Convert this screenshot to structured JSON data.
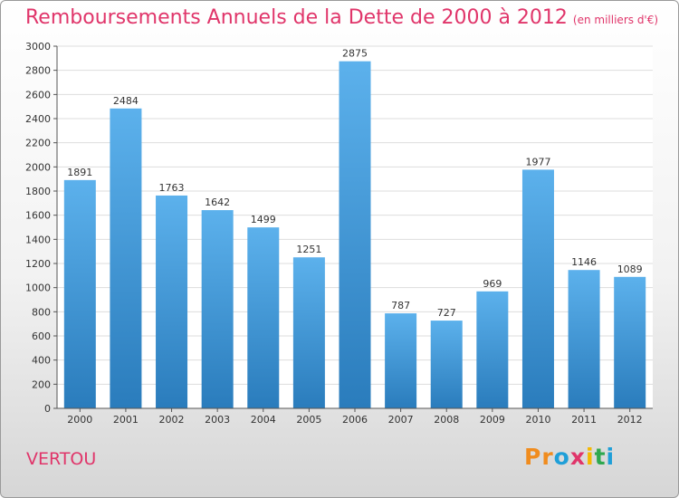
{
  "title": {
    "main": "Remboursements Annuels de la Dette de 2000 à 2012",
    "unit": "(en milliers d'€)"
  },
  "commune": "VERTOU",
  "logo": {
    "text": "Proxiti",
    "colors": [
      "#f08c1e",
      "#f08c1e",
      "#1f9fd8",
      "#e0356a",
      "#f5b800",
      "#2fa84f",
      "#1f9fd8"
    ]
  },
  "colors": {
    "title": "#e0356a",
    "bar_light": "#5cb1ec",
    "bar_dark": "#2a7cbc",
    "grid": "#dddddd"
  },
  "chart_data": {
    "type": "bar",
    "categories": [
      "2000",
      "2001",
      "2002",
      "2003",
      "2004",
      "2005",
      "2006",
      "2007",
      "2008",
      "2009",
      "2010",
      "2011",
      "2012"
    ],
    "values": [
      1891,
      2484,
      1763,
      1642,
      1499,
      1251,
      2875,
      787,
      727,
      969,
      1977,
      1146,
      1089
    ],
    "ylim": [
      0,
      3000
    ],
    "yticks": [
      0,
      200,
      400,
      600,
      800,
      1000,
      1200,
      1400,
      1600,
      1800,
      2000,
      2200,
      2400,
      2600,
      2800,
      3000
    ],
    "grid": true,
    "data_labels": true
  }
}
